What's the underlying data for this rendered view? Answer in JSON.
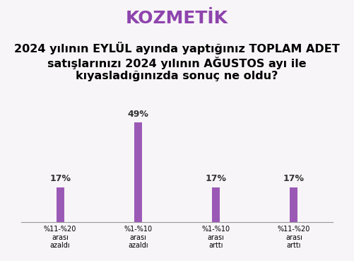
{
  "chart_data": {
    "type": "bar",
    "title": "KOZMETİK",
    "subtitle": "2024 yılının EYLÜL ayında yaptığınız TOPLAM ADET satışlarınızı 2024 yılının AĞUSTOS ayı ile kıyasladığınızda sonuç ne oldu?",
    "categories": [
      "%11-%20 arası azaldı",
      "%1-%10 arası azaldı",
      "%1-%10 arası arttı",
      "%11-%20 arası arttı"
    ],
    "values": [
      17,
      49,
      17,
      17
    ],
    "value_labels": [
      "17%",
      "49%",
      "17%",
      "17%"
    ],
    "color": "#9b59b6",
    "data_labels": true,
    "tick_labels": "x",
    "grid": false
  }
}
